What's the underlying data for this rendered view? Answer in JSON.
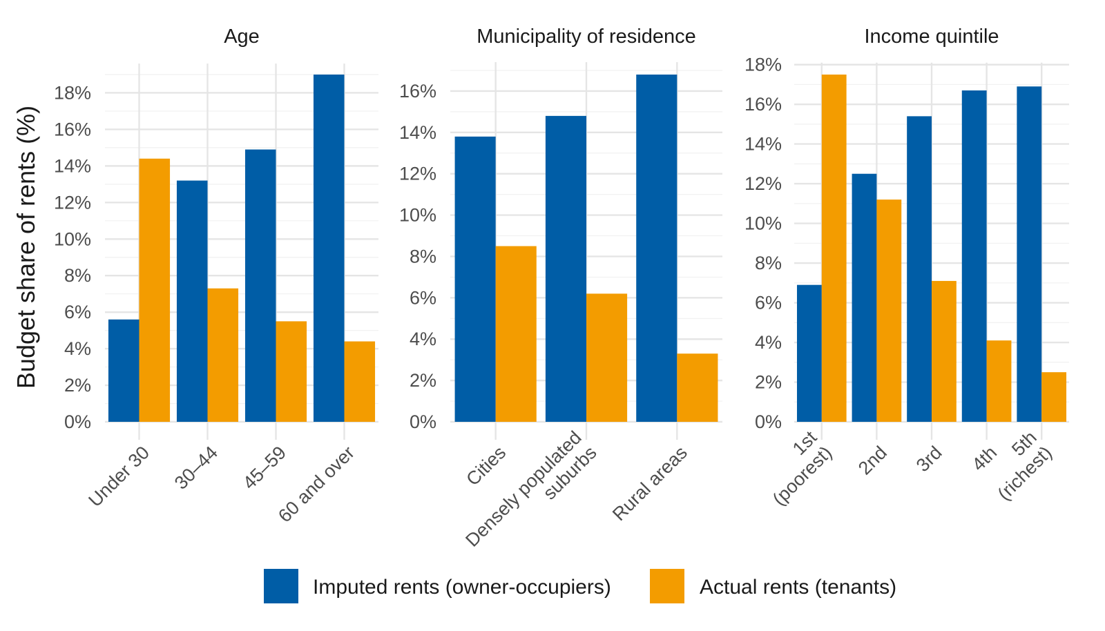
{
  "chart_data": {
    "type": "bar",
    "ylabel": "Budget share of rents (%)",
    "unit": "%",
    "grid": true,
    "legend_position": "bottom",
    "series_meta": [
      {
        "key": "imputed",
        "name": "Imputed rents (owner-occupiers)",
        "color": "#005DA6"
      },
      {
        "key": "actual",
        "name": "Actual rents (tenants)",
        "color": "#F39C00"
      }
    ],
    "panels": [
      {
        "title": "Age",
        "categories": [
          "Under 30",
          "30–44",
          "45–59",
          "60 and over"
        ],
        "imputed": [
          5.6,
          13.2,
          14.9,
          19.0
        ],
        "actual": [
          14.4,
          7.3,
          5.5,
          4.4
        ],
        "ylim": [
          0,
          19.0
        ],
        "yticks": [
          0,
          2,
          4,
          6,
          8,
          10,
          12,
          14,
          16,
          18
        ]
      },
      {
        "title": "Municipality of residence",
        "categories": [
          "Cities",
          "Densely populated\nsuburbs",
          "Rural areas"
        ],
        "imputed": [
          13.8,
          14.8,
          16.8
        ],
        "actual": [
          8.5,
          6.2,
          3.3
        ],
        "ylim": [
          0,
          16.8
        ],
        "yticks": [
          0,
          2,
          4,
          6,
          8,
          10,
          12,
          14,
          16
        ]
      },
      {
        "title": "Income quintile",
        "categories": [
          "1st\n(poorest)",
          "2nd",
          "3rd",
          "4th",
          "5th\n(richest)"
        ],
        "imputed": [
          6.9,
          12.5,
          15.4,
          16.7,
          16.9
        ],
        "actual": [
          17.5,
          11.2,
          7.1,
          4.1,
          2.5
        ],
        "ylim": [
          0,
          17.5
        ],
        "yticks": [
          0,
          2,
          4,
          6,
          8,
          10,
          12,
          14,
          16,
          18
        ]
      }
    ]
  }
}
